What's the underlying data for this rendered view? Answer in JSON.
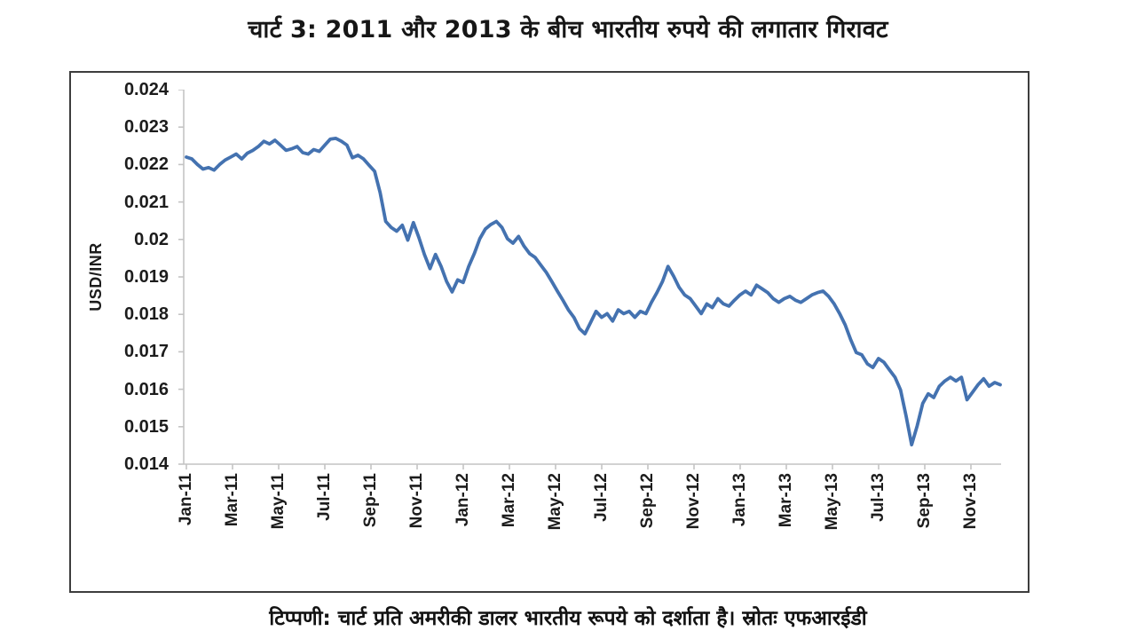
{
  "page": {
    "title": "चार्ट 3: 2011 और 2013 के बीच भारतीय रुपये की लगातार गिरावट",
    "note": "टिप्पणी: चार्ट प्रति अमरीकी डालर भारतीय रूपये को दर्शाता है। स्रोतः एफआरईडी"
  },
  "chart_data": {
    "type": "line",
    "title": "चार्ट 3: 2011 और 2013 के बीच भारतीय रुपये की लगातार गिरावट",
    "xlabel": "",
    "ylabel": "USD/INR",
    "note": "टिप्पणी: चार्ट प्रति अमरीकी डालर भारतीय रूपये को दर्शाता है। स्रोतः एफआरईडी",
    "ylim": [
      0.014,
      0.024
    ],
    "y_tick_labels": [
      "0.024",
      "0.023",
      "0.022",
      "0.021",
      "0.02",
      "0.019",
      "0.018",
      "0.017",
      "0.016",
      "0.015",
      "0.014"
    ],
    "x_tick_labels": [
      "Jan-11",
      "Mar-11",
      "May-11",
      "Jul-11",
      "Sep-11",
      "Nov-11",
      "Jan-12",
      "Mar-12",
      "May-12",
      "Jul-12",
      "Sep-12",
      "Nov-12",
      "Jan-13",
      "Mar-13",
      "May-13",
      "Jul-13",
      "Sep-13",
      "Nov-13"
    ],
    "grid": false,
    "legend": "none",
    "line_color": "#4472b0",
    "axis_color": "#c4c4c4",
    "series": [
      {
        "name": "USD/INR",
        "values": [
          0.0222,
          0.02215,
          0.022,
          0.02188,
          0.02192,
          0.02185,
          0.022,
          0.02212,
          0.0222,
          0.02228,
          0.02215,
          0.0223,
          0.02238,
          0.02248,
          0.02262,
          0.02255,
          0.02265,
          0.02252,
          0.02238,
          0.02242,
          0.02248,
          0.02232,
          0.02228,
          0.0224,
          0.02235,
          0.02252,
          0.02268,
          0.0227,
          0.02262,
          0.02252,
          0.02218,
          0.02225,
          0.02215,
          0.02198,
          0.02182,
          0.02125,
          0.02048,
          0.02032,
          0.02022,
          0.02038,
          0.01998,
          0.02045,
          0.02005,
          0.0196,
          0.01922,
          0.0196,
          0.01928,
          0.01888,
          0.0186,
          0.01892,
          0.01885,
          0.01928,
          0.01962,
          0.02002,
          0.02028,
          0.0204,
          0.02048,
          0.02032,
          0.02002,
          0.0199,
          0.02008,
          0.01982,
          0.01962,
          0.01952,
          0.01932,
          0.01912,
          0.01888,
          0.01862,
          0.01838,
          0.01812,
          0.01792,
          0.01762,
          0.01748,
          0.01778,
          0.01808,
          0.01792,
          0.01802,
          0.01782,
          0.01812,
          0.01802,
          0.01808,
          0.01792,
          0.01808,
          0.01802,
          0.01832,
          0.01858,
          0.01888,
          0.01928,
          0.01902,
          0.01872,
          0.01852,
          0.01842,
          0.01822,
          0.01802,
          0.01828,
          0.01818,
          0.01842,
          0.01828,
          0.01822,
          0.01838,
          0.01852,
          0.01862,
          0.01852,
          0.01878,
          0.01868,
          0.01858,
          0.01842,
          0.01832,
          0.01842,
          0.01848,
          0.01838,
          0.01832,
          0.01842,
          0.01852,
          0.01858,
          0.01862,
          0.01848,
          0.01828,
          0.01802,
          0.01772,
          0.01732,
          0.01698,
          0.01692,
          0.01668,
          0.01658,
          0.01682,
          0.01672,
          0.01652,
          0.01632,
          0.01598,
          0.01528,
          0.01452,
          0.01502,
          0.01562,
          0.01588,
          0.01578,
          0.01608,
          0.01622,
          0.01632,
          0.01622,
          0.01632,
          0.01572,
          0.01592,
          0.01612,
          0.01628,
          0.01608,
          0.01618,
          0.01612
        ]
      }
    ]
  }
}
